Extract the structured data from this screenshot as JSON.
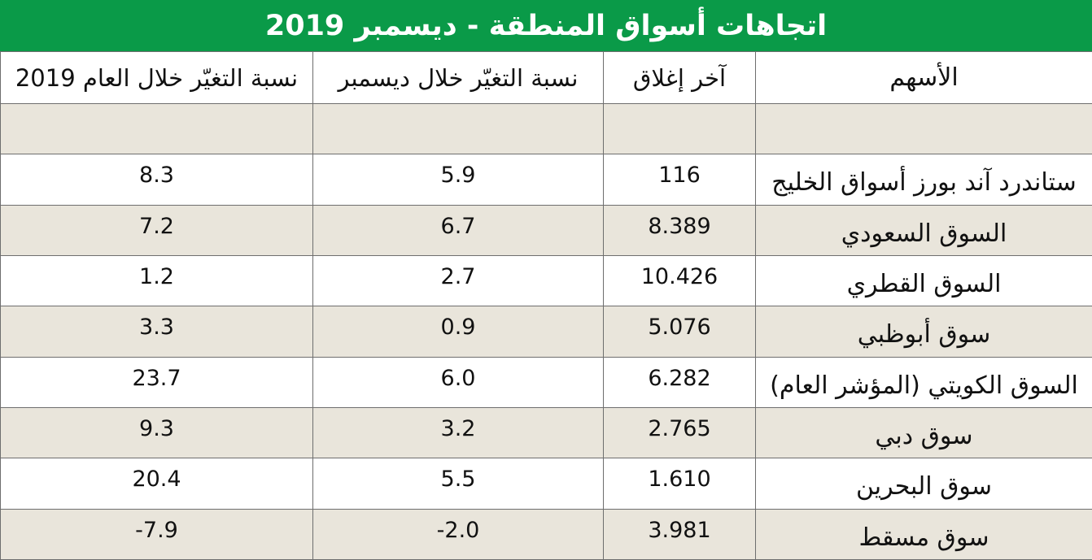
{
  "chart_data": {
    "type": "table",
    "title": "اتجاهات أسواق المنطقة - ديسمبر 2019",
    "columns": [
      "الأسهم",
      "آخر إغلاق",
      "نسبة التغيّر خلال ديسمبر",
      "نسبة التغيّر خلال العام 2019"
    ],
    "rows": [
      {
        "name": "",
        "close": "",
        "dec": "",
        "year": ""
      },
      {
        "name": "ستاندرد آند بورز أسواق الخليج",
        "close": "116",
        "dec": "5.9",
        "year": "8.3"
      },
      {
        "name": "السوق السعودي",
        "close": "8.389",
        "dec": "6.7",
        "year": "7.2"
      },
      {
        "name": "السوق القطري",
        "close": "10.426",
        "dec": "2.7",
        "year": "1.2"
      },
      {
        "name": "سوق أبوظبي",
        "close": "5.076",
        "dec": "0.9",
        "year": "3.3"
      },
      {
        "name": "السوق الكويتي (المؤشر العام)",
        "close": "6.282",
        "dec": "6.0",
        "year": "23.7"
      },
      {
        "name": "سوق دبي",
        "close": "2.765",
        "dec": "3.2",
        "year": "9.3"
      },
      {
        "name": "سوق البحرين",
        "close": "1.610",
        "dec": "5.5",
        "year": "20.4"
      },
      {
        "name": "سوق مسقط",
        "close": "3.981",
        "dec": "-2.0",
        "year": "-7.9"
      }
    ]
  },
  "colors": {
    "title_bg": "#0a9a48",
    "title_text": "#ffffff",
    "shade": "#e9e5db",
    "grid": "#6e6e6e"
  }
}
